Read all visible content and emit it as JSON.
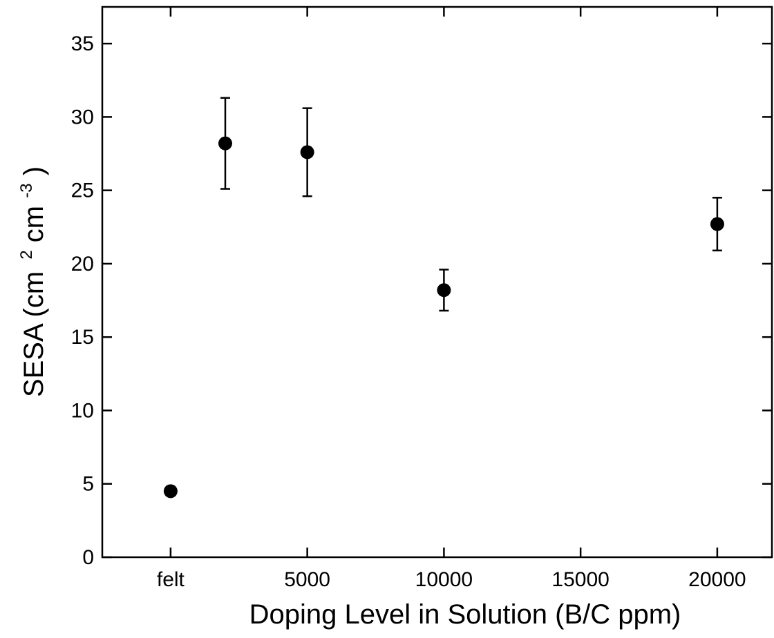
{
  "chart_data": {
    "type": "scatter",
    "title": "",
    "xlabel": "Doping Level in Solution (B/C ppm)",
    "ylabel": {
      "prefix": "SESA (cm",
      "sup1": "2",
      "middle": "cm",
      "sup2": "-3",
      "suffix": ")"
    },
    "xlim": [
      -2500,
      22000
    ],
    "ylim": [
      0,
      37.5
    ],
    "x_ticks": [
      {
        "value": 0,
        "label": "felt"
      },
      {
        "value": 5000,
        "label": "5000"
      },
      {
        "value": 10000,
        "label": "10000"
      },
      {
        "value": 15000,
        "label": "15000"
      },
      {
        "value": 20000,
        "label": "20000"
      }
    ],
    "y_ticks": [
      0,
      5,
      10,
      15,
      20,
      25,
      30,
      35
    ],
    "grid": false,
    "series": [
      {
        "points": [
          {
            "x": 0,
            "y": 4.5,
            "err": 0.3
          },
          {
            "x": 2000,
            "y": 28.2,
            "err": 3.1
          },
          {
            "x": 5000,
            "y": 27.6,
            "err": 3.0
          },
          {
            "x": 10000,
            "y": 18.2,
            "err": 1.4
          },
          {
            "x": 20000,
            "y": 22.7,
            "err": 1.8
          }
        ]
      }
    ],
    "colors": {
      "marker": "#000000",
      "axis": "#000000"
    }
  }
}
